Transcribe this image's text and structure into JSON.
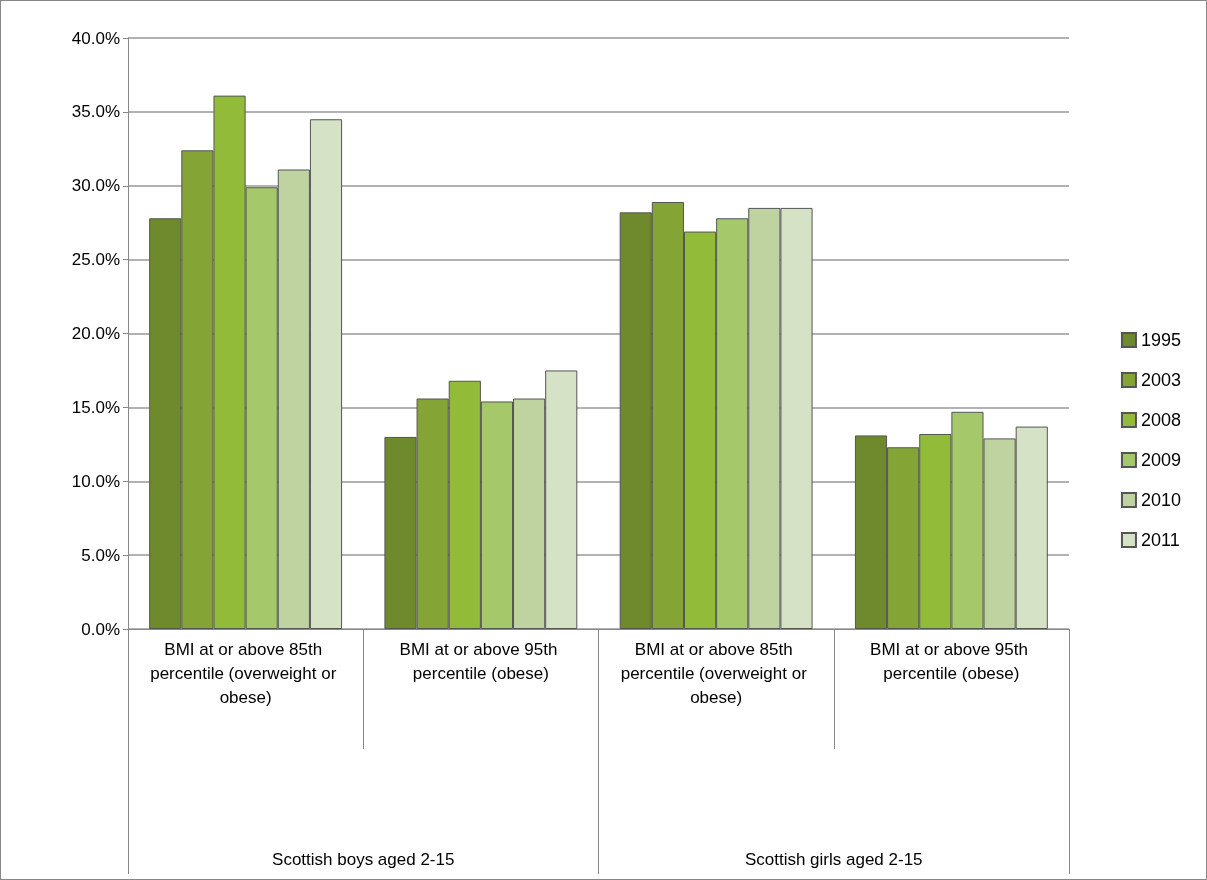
{
  "chart_data": {
    "type": "bar",
    "categories": [
      "BMI at or above 85th percentile (overweight or obese)",
      "BMI at or above 95th percentile (obese)",
      "BMI at or above 85th percentile (overweight or obese)",
      "BMI at or above 95th percentile (obese)"
    ],
    "annotations": [
      "Scottish boys aged 2-15",
      "Scottish girls aged 2-15"
    ],
    "series": [
      {
        "name": "1995",
        "color": "#6e8a2c",
        "values": [
          27.8,
          13.0,
          28.2,
          13.1
        ]
      },
      {
        "name": "2003",
        "color": "#84a535",
        "values": [
          32.4,
          15.6,
          28.9,
          12.3
        ]
      },
      {
        "name": "2008",
        "color": "#92bb3a",
        "values": [
          36.1,
          16.8,
          26.9,
          13.2
        ]
      },
      {
        "name": "2009",
        "color": "#a5c86a",
        "values": [
          29.9,
          15.4,
          27.8,
          14.7
        ]
      },
      {
        "name": "2010",
        "color": "#bed3a0",
        "values": [
          31.1,
          15.6,
          28.5,
          12.9
        ]
      },
      {
        "name": "2011",
        "color": "#d6e2c5",
        "values": [
          34.5,
          17.5,
          28.5,
          13.7
        ]
      }
    ],
    "ylim": [
      0,
      40
    ],
    "yticks": [
      {
        "value": 0,
        "label": "0.0%"
      },
      {
        "value": 5,
        "label": "5.0%"
      },
      {
        "value": 10,
        "label": "10.0%"
      },
      {
        "value": 15,
        "label": "15.0%"
      },
      {
        "value": 20,
        "label": "20.0%"
      },
      {
        "value": 25,
        "label": "25.0%"
      },
      {
        "value": 30,
        "label": "30.0%"
      },
      {
        "value": 35,
        "label": "35.0%"
      },
      {
        "value": 40,
        "label": "40.0%"
      }
    ],
    "grid": "y",
    "legend": "right"
  }
}
